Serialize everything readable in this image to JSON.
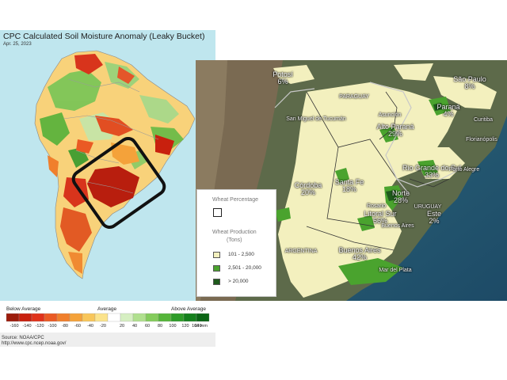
{
  "left_map": {
    "title": "CPC Calculated Soil Moisture Anomaly (Leaky Bucket)",
    "date": "Apr. 25, 2023",
    "scale_below": "Below Average",
    "scale_average": "Average",
    "scale_above": "Above Average",
    "ticks": [
      "-160",
      "-140",
      "-120",
      "-100",
      "-80",
      "-60",
      "-40",
      "-20",
      "20",
      "40",
      "60",
      "80",
      "100",
      "120",
      "140",
      "160 mm"
    ],
    "scale_colors": [
      "#9c1c0c",
      "#c8200e",
      "#e0321a",
      "#ea5a24",
      "#f07f2c",
      "#f4a23a",
      "#f8c65a",
      "#fbe38c",
      "#ffffff",
      "#d6efc2",
      "#b0e08e",
      "#84cc5c",
      "#55b53a",
      "#2e9c28",
      "#14801c",
      "#0a6414"
    ],
    "source_line1": "Source: NOAA/CPC",
    "source_line2": "http://www.cpc.ncep.noaa.gov/"
  },
  "right_map": {
    "places": [
      {
        "name": "Potosí",
        "pct": "6%"
      },
      {
        "name": "São Paulo",
        "pct": "8%"
      },
      {
        "name": "PARAGUAY",
        "pct": ""
      },
      {
        "name": "Paraná",
        "pct": "4%"
      },
      {
        "name": "Curitiba",
        "pct": ""
      },
      {
        "name": "Asunción",
        "pct": ""
      },
      {
        "name": "Alto Paraná",
        "pct": "29%"
      },
      {
        "name": "San Miguel de Tucumán",
        "pct": ""
      },
      {
        "name": "Florianópolis",
        "pct": ""
      },
      {
        "name": "Rio Grande do Sul",
        "pct": "33%"
      },
      {
        "name": "Porto Alegre",
        "pct": ""
      },
      {
        "name": "Santa Fe",
        "pct": "18%"
      },
      {
        "name": "Córdoba",
        "pct": "20%"
      },
      {
        "name": "Norte",
        "pct": "28%"
      },
      {
        "name": "Rosario",
        "pct": ""
      },
      {
        "name": "URUGUAY",
        "pct": ""
      },
      {
        "name": "Litoral Sur",
        "pct": "56%"
      },
      {
        "name": "Este",
        "pct": "2%"
      },
      {
        "name": "Buenos Aires",
        "pct": ""
      },
      {
        "name": "ARGENTINA",
        "pct": ""
      },
      {
        "name": "Buenos Aires",
        "pct": "42%"
      },
      {
        "name": "Mar del Plata",
        "pct": ""
      }
    ],
    "legend": {
      "pct_title": "Wheat Percentage",
      "prod_title": "Wheat Production",
      "prod_unit": "(Tons)",
      "items": [
        {
          "label": "101 - 2,500",
          "color": "#f3f0be"
        },
        {
          "label": "2,501 - 20,000",
          "color": "#4aa32e"
        },
        {
          "label": "> 20,000",
          "color": "#1f5a1c"
        }
      ]
    }
  }
}
